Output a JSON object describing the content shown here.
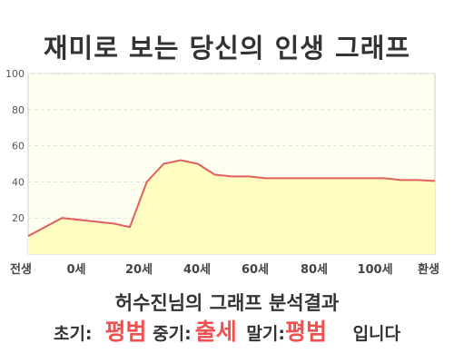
{
  "title": "재미로 보는 당신의 인생 그래프",
  "chart_data": {
    "type": "area",
    "x_labels": [
      "전생",
      "0세",
      "20세",
      "40세",
      "60세",
      "80세",
      "100세",
      "환생"
    ],
    "y_ticks": [
      20,
      40,
      60,
      80,
      100
    ],
    "ylim": [
      0,
      100
    ],
    "grid": true,
    "series": [
      {
        "x": [
          -10,
          0,
          15,
          20,
          25,
          30,
          35,
          40,
          45,
          50,
          55,
          60,
          65,
          70,
          75,
          80,
          85,
          90,
          95,
          100,
          105,
          110
        ],
        "y": [
          10,
          20,
          17,
          15,
          40,
          50,
          52,
          50,
          44,
          43,
          43,
          42,
          42,
          42,
          42,
          42,
          42,
          42,
          42,
          41,
          41,
          40.5
        ]
      }
    ],
    "colors": {
      "line": "#e06060",
      "fill": "#fffdc0",
      "plot_bg": "#fffff0",
      "grid": "#dddddd"
    }
  },
  "summary": {
    "title": "허수진님의 그래프 분석결과",
    "early_label": "초기:",
    "early_value": "평범",
    "middle_label": "중기:",
    "middle_value": "출세",
    "late_label": "말기:",
    "late_value": "평범",
    "ending": "입니다"
  }
}
